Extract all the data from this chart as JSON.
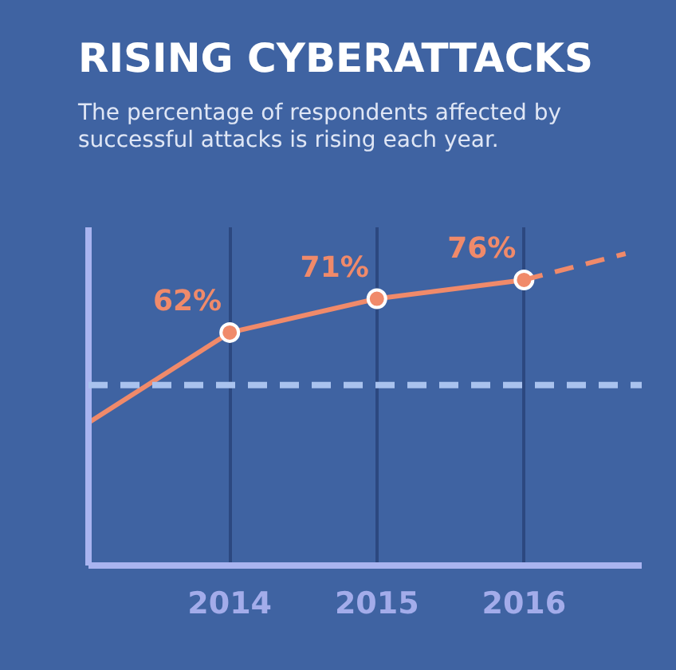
{
  "chart_data": {
    "type": "line",
    "title": "RISING CYBERATTACKS",
    "subtitle": "The percentage of respondents affected by successful attacks is rising each year.",
    "xlim": [
      2013.04,
      2016.8
    ],
    "ylim": [
      0,
      90
    ],
    "xticks": [
      2014,
      2015,
      2016
    ],
    "tick_labels": "x",
    "grid": "x",
    "ref_lines": [
      {
        "axis": "y",
        "value": 48,
        "color": "#a9c2ee",
        "line_style": "dashed"
      }
    ],
    "series": [
      {
        "color": "#f08a6a",
        "x": [
          2013.04,
          2014
        ],
        "values": [
          38,
          62
        ],
        "line_style": "solid"
      },
      {
        "color": "#f08a6a",
        "x": [
          2014,
          2015,
          2016
        ],
        "values": [
          62,
          71,
          76
        ],
        "marker": "circle",
        "line_style": "solid",
        "value_labels": [
          "62%",
          "71%",
          "76%"
        ]
      },
      {
        "color": "#f08a6a",
        "x": [
          2016,
          2016.69
        ],
        "values": [
          76,
          83
        ],
        "line_style": "dashed"
      }
    ]
  }
}
